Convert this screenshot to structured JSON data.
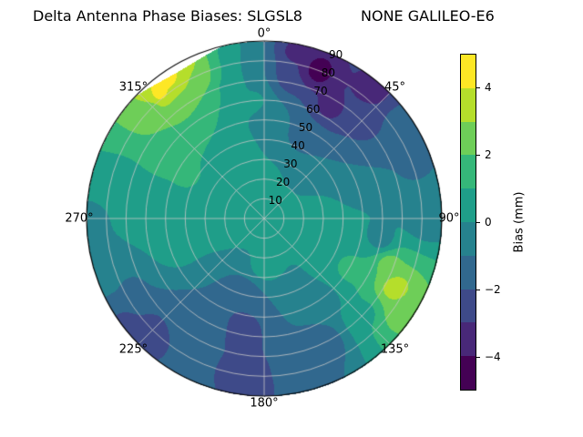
{
  "chart_data": {
    "type": "polar_filled_contour",
    "title_left": "Delta Antenna Phase Biases: SLGSL8",
    "title_right": "NONE GALILEO-E6",
    "angle_direction": "clockwise",
    "zero_location": "top",
    "angle_labels": [
      "0°",
      "45°",
      "90°",
      "135°",
      "180°",
      "225°",
      "270°",
      "315°"
    ],
    "radial_tick_labels": [
      "10",
      "20",
      "30",
      "40",
      "50",
      "60",
      "70",
      "80",
      "90"
    ],
    "radial_label_angle_deg": 22.5,
    "r_max": 90,
    "value_range": [
      -5,
      5
    ],
    "levels": [
      -5,
      -4,
      -3,
      -2,
      -1,
      0,
      1,
      2,
      3,
      4,
      5
    ],
    "level_colors": [
      "#440154",
      "#482878",
      "#3e4a89",
      "#31688e",
      "#26828e",
      "#1f9e89",
      "#35b779",
      "#6ece58",
      "#b5de2b",
      "#fde725"
    ],
    "grid_color": "#c8c8c8",
    "colorbar": {
      "label": "Bias (mm)",
      "min": -5,
      "max": 5,
      "ticks": [
        {
          "value": 4,
          "label": "4"
        },
        {
          "value": 2,
          "label": "2"
        },
        {
          "value": 0,
          "label": "0"
        },
        {
          "value": -2,
          "label": "−2"
        },
        {
          "value": -4,
          "label": "−4"
        }
      ]
    },
    "rim_gap": {
      "az_start": 314,
      "az_end": 346,
      "max_depth": 3.5
    },
    "samples_columns": [
      "azimuth_deg",
      "radius",
      "bias_mm"
    ],
    "samples": [
      [
        0,
        0,
        0.4
      ],
      [
        0,
        22,
        0.1
      ],
      [
        90,
        28,
        0.25
      ],
      [
        180,
        25,
        0.3
      ],
      [
        270,
        25,
        0.6
      ],
      [
        315,
        22,
        0.6
      ],
      [
        20,
        80,
        -4.6
      ],
      [
        30,
        66,
        -3.4
      ],
      [
        10,
        74,
        -3.0
      ],
      [
        10,
        86,
        -3.2
      ],
      [
        40,
        85,
        -3.6
      ],
      [
        45,
        72,
        -2.5
      ],
      [
        55,
        83,
        -1.6
      ],
      [
        25,
        46,
        -1.2
      ],
      [
        5,
        52,
        -0.8
      ],
      [
        358,
        72,
        -1.0
      ],
      [
        70,
        80,
        -1.1
      ],
      [
        90,
        82,
        -0.8
      ],
      [
        100,
        60,
        -0.4
      ],
      [
        90,
        45,
        0.0
      ],
      [
        118,
        75,
        3.8
      ],
      [
        125,
        83,
        2.6
      ],
      [
        110,
        67,
        2.4
      ],
      [
        121,
        88,
        2.1
      ],
      [
        120,
        50,
        1.2
      ],
      [
        133,
        70,
        0.8
      ],
      [
        155,
        70,
        -2.0
      ],
      [
        163,
        85,
        -1.5
      ],
      [
        145,
        52,
        -0.5
      ],
      [
        188,
        78,
        -2.6
      ],
      [
        193,
        58,
        -2.9
      ],
      [
        196,
        40,
        -1.9
      ],
      [
        184,
        88,
        -2.3
      ],
      [
        205,
        60,
        -1.2
      ],
      [
        225,
        82,
        -2.7
      ],
      [
        233,
        88,
        -2.2
      ],
      [
        217,
        66,
        -1.6
      ],
      [
        242,
        76,
        -1.1
      ],
      [
        252,
        86,
        -0.5
      ],
      [
        270,
        60,
        0.5
      ],
      [
        270,
        88,
        -0.2
      ],
      [
        285,
        76,
        0.7
      ],
      [
        255,
        48,
        0.7
      ],
      [
        325,
        89,
        5.0
      ],
      [
        320,
        83,
        4.2
      ],
      [
        331,
        86,
        4.0
      ],
      [
        314,
        79,
        2.6
      ],
      [
        335,
        79,
        2.4
      ],
      [
        322,
        68,
        2.0
      ],
      [
        308,
        60,
        1.6
      ],
      [
        300,
        45,
        1.1
      ],
      [
        345,
        70,
        0.9
      ],
      [
        352,
        82,
        0.0
      ],
      [
        355,
        60,
        0.3
      ],
      [
        330,
        36,
        0.8
      ]
    ]
  }
}
